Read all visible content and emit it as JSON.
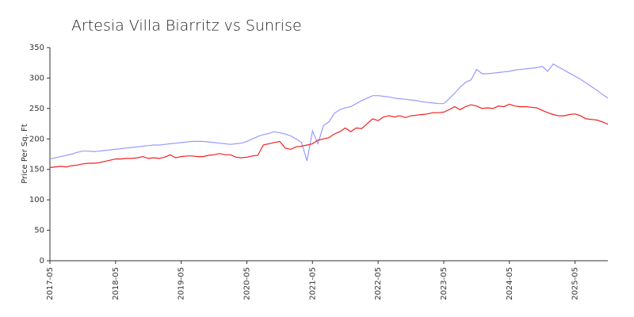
{
  "chart_data": {
    "type": "line",
    "title": "Artesia Villa Biarritz vs Sunrise",
    "y_label": "Price Per Sq. Ft",
    "categories": [
      "2017-05",
      null,
      null,
      null,
      null,
      null,
      null,
      null,
      null,
      null,
      null,
      null,
      "2018-05",
      null,
      null,
      null,
      null,
      null,
      null,
      null,
      null,
      null,
      null,
      null,
      "2019-05",
      null,
      null,
      null,
      null,
      null,
      null,
      null,
      null,
      null,
      null,
      null,
      "2020-05",
      null,
      null,
      null,
      null,
      null,
      null,
      null,
      null,
      null,
      null,
      null,
      "2021-05",
      null,
      null,
      null,
      null,
      null,
      null,
      null,
      null,
      null,
      null,
      null,
      "2022-05",
      null,
      null,
      null,
      null,
      null,
      null,
      null,
      null,
      null,
      null,
      null,
      "2023-05",
      null,
      null,
      null,
      null,
      null,
      null,
      null,
      null,
      null,
      null,
      null,
      "2024-05",
      null,
      null,
      null,
      null,
      null,
      null,
      null,
      null,
      null,
      null,
      null,
      "2025-05",
      null,
      null,
      null,
      null,
      null,
      null
    ],
    "series": [
      {
        "color": "#9999ff",
        "values": [
          167,
          169,
          171,
          173,
          175,
          178,
          180,
          180,
          179,
          180,
          181,
          182,
          183,
          184,
          185,
          186,
          187,
          188,
          189,
          190,
          190,
          191,
          192,
          193,
          194,
          195,
          196,
          196,
          196,
          195,
          194,
          193,
          192,
          191,
          192,
          193,
          196,
          200,
          204,
          207,
          209,
          212,
          210,
          208,
          205,
          200,
          194,
          164,
          213,
          192,
          222,
          228,
          242,
          248,
          251,
          253,
          258,
          263,
          267,
          271,
          271,
          270,
          269,
          267,
          266,
          265,
          264,
          263,
          261,
          260,
          259,
          258,
          258,
          266,
          275,
          285,
          293,
          297,
          314,
          307,
          307,
          308,
          309,
          310,
          311,
          313,
          314,
          315,
          316,
          317,
          319,
          311,
          323,
          318,
          313,
          308,
          303,
          298,
          292,
          286,
          280,
          273,
          267
        ]
      },
      {
        "color": "#ee2222",
        "values": [
          153,
          154,
          155,
          154,
          156,
          157,
          159,
          160,
          160,
          161,
          163,
          165,
          167,
          167,
          168,
          168,
          169,
          171,
          168,
          169,
          168,
          170,
          174,
          169,
          171,
          172,
          172,
          171,
          171,
          173,
          174,
          176,
          174,
          174,
          170,
          169,
          170,
          172,
          173,
          190,
          192,
          194,
          196,
          185,
          183,
          187,
          188,
          190,
          192,
          198,
          200,
          202,
          208,
          212,
          218,
          212,
          218,
          217,
          225,
          233,
          230,
          236,
          238,
          236,
          238,
          235,
          238,
          239,
          240,
          241,
          243,
          243,
          244,
          248,
          253,
          248,
          253,
          256,
          254,
          250,
          251,
          250,
          254,
          253,
          257,
          254,
          253,
          253,
          252,
          251,
          247,
          243,
          240,
          238,
          238,
          240,
          241,
          238,
          233,
          232,
          231,
          228,
          224
        ]
      }
    ],
    "ylim": [
      0,
      350
    ],
    "yticks": [
      0,
      50,
      100,
      150,
      200,
      250,
      300,
      350
    ],
    "grid": false
  }
}
